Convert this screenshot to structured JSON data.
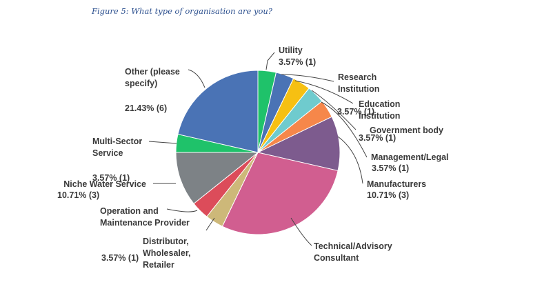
{
  "caption": "Figure 5: What type of organisation are you?",
  "chart_data": {
    "type": "pie",
    "title": "",
    "slices": [
      {
        "name": "Utility",
        "percent": 3.57,
        "count": 1,
        "value_label": "3.57% (1)",
        "color": "#1fc26a"
      },
      {
        "name": "Research Institution",
        "percent": 3.57,
        "count": 1,
        "value_label": "",
        "color": "#4a73b5"
      },
      {
        "name": "Education Institution",
        "percent": 3.57,
        "count": 1,
        "value_label": "3.57% (1)",
        "color": "#f6c012"
      },
      {
        "name": "Government body",
        "percent": 3.57,
        "count": 1,
        "value_label": "3.57% (1)",
        "color": "#6fcbce"
      },
      {
        "name": "Management/Legal",
        "percent": 3.57,
        "count": 1,
        "value_label": "3.57% (1)",
        "color": "#f6874a"
      },
      {
        "name": "Manufacturers",
        "percent": 10.71,
        "count": 3,
        "value_label": "10.71% (3)",
        "color": "#7d5b8e"
      },
      {
        "name": "Technical/Advisory Consultant",
        "percent": 28.57,
        "count": 8,
        "value_label": "",
        "color": "#d15e90"
      },
      {
        "name": "Distributor, Wholesaler, Retailer",
        "percent": 3.57,
        "count": 1,
        "value_label": "3.57% (1)",
        "color": "#cdb879"
      },
      {
        "name": "Operation and Maintenance Provider",
        "percent": 3.57,
        "count": 1,
        "value_label": "",
        "color": "#dc4c5a"
      },
      {
        "name": "Niche Water Service",
        "percent": 10.71,
        "count": 3,
        "value_label": "10.71% (3)",
        "color": "#7d8286"
      },
      {
        "name": "Multi-Sector Service",
        "percent": 3.57,
        "count": 1,
        "value_label": "3.57% (1)",
        "color": "#1fc26a"
      },
      {
        "name": "Other (please specify)",
        "percent": 21.43,
        "count": 6,
        "value_label": "21.43% (6)",
        "color": "#4a73b5"
      }
    ]
  }
}
